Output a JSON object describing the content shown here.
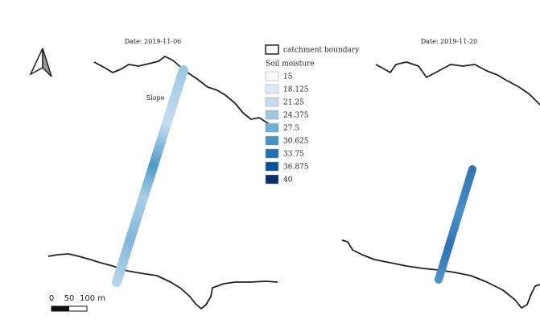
{
  "panels": [
    {
      "date": "Date: 2019-11-06",
      "label": "Slope"
    },
    {
      "date": "Date: 2019-11-20"
    }
  ],
  "legend": {
    "boundary": "catchment boundary",
    "title": "Soil moisture",
    "items": [
      {
        "value": 15,
        "color": "#f7fbff"
      },
      {
        "value": 18.125,
        "color": "#deebf7"
      },
      {
        "value": 21.25,
        "color": "#c6dbef"
      },
      {
        "value": 24.375,
        "color": "#9ecae1"
      },
      {
        "value": 27.5,
        "color": "#6baed6"
      },
      {
        "value": 30.625,
        "color": "#4292c6"
      },
      {
        "value": 33.75,
        "color": "#2171b5"
      },
      {
        "value": 36.875,
        "color": "#08519c"
      },
      {
        "value": 40,
        "color": "#08306b"
      }
    ]
  },
  "scale_bar": {
    "labels": [
      "0",
      "50",
      "100 m"
    ]
  }
}
